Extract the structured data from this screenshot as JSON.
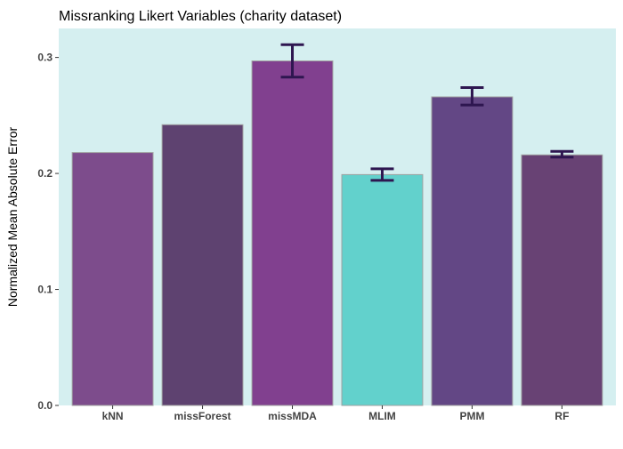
{
  "chart_data": {
    "type": "bar",
    "title": "Missranking Likert Variables (charity dataset)",
    "xlabel": "",
    "ylabel": "Normalized Mean Absolute Error",
    "ylim": [
      0,
      0.325
    ],
    "yticks": [
      0.0,
      0.1,
      0.2,
      0.3
    ],
    "ytick_labels": [
      "0.0",
      "0.1",
      "0.2",
      "0.3"
    ],
    "grid": false,
    "panel_background": "#d5eff0",
    "categories": [
      "kNN",
      "missForest",
      "missMDA",
      "MLIM",
      "PMM",
      "RF"
    ],
    "values": [
      0.218,
      0.242,
      0.297,
      0.199,
      0.266,
      0.216
    ],
    "error_low": [
      null,
      null,
      0.283,
      0.194,
      0.259,
      0.214
    ],
    "error_high": [
      null,
      null,
      0.311,
      0.204,
      0.274,
      0.219
    ],
    "colors": [
      "#7d4c8c",
      "#5e4270",
      "#81408f",
      "#62d1cc",
      "#634785",
      "#684274"
    ],
    "error_color": "#2e1650",
    "bar_outline": "#a0a0a0"
  }
}
